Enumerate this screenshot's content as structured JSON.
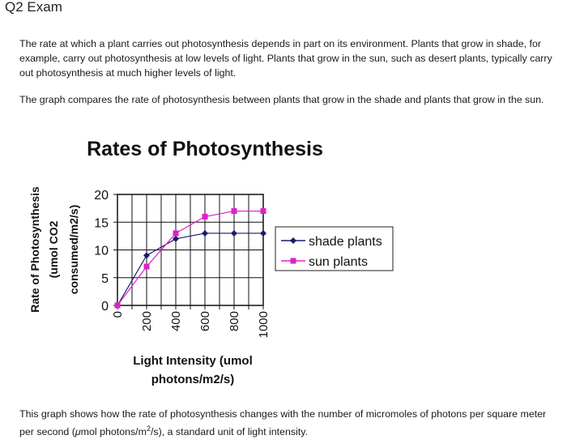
{
  "header": {
    "title": "Q2 Exam"
  },
  "intro": {
    "paragraph1": "The rate at which a plant carries out photosynthesis depends in part on its environment.  Plants that grow in shade, for example, carry out photosynthesis at low levels of light.  Plants that grow in the sun, such as desert plants, typically carry out photosynthesis at much higher levels of light.",
    "paragraph2": "The graph compares the rate of photosynthesis between plants that grow in the shade and plants that grow in the sun."
  },
  "footer": {
    "text_before": "This graph shows how the rate of photosynthesis changes with the number of micromoles of photons per square meter per second (",
    "unit_mu": "μ",
    "unit_main": "mol photons/m",
    "unit_sup": "2",
    "unit_end": "/s)",
    "text_after": ", a standard unit of light intensity."
  },
  "chart_data": {
    "type": "line",
    "title": "Rates of Photosynthesis",
    "xlabel_line1": "Light Intensity (umol",
    "xlabel_line2": "photons/m2/s)",
    "ylabel_line1": "Rate of Photosynthesis",
    "ylabel_line2": "(umol CO2",
    "ylabel_line3": "consumed/m2/s)",
    "x": [
      0,
      100,
      200,
      300,
      400,
      500,
      600,
      700,
      800,
      900,
      1000
    ],
    "xlim": [
      0,
      1000
    ],
    "ylim": [
      0,
      20
    ],
    "x_ticks": [
      "0",
      "200",
      "400",
      "600",
      "800",
      "1000"
    ],
    "y_ticks": [
      "0",
      "5",
      "10",
      "15",
      "20"
    ],
    "grid": true,
    "legend_position": "right",
    "series": [
      {
        "name": "shade plants",
        "color": "#1a1a6e",
        "marker": "diamond",
        "values": [
          0,
          null,
          9,
          null,
          12,
          null,
          13,
          null,
          13,
          null,
          13
        ]
      },
      {
        "name": "sun plants",
        "color": "#e020c8",
        "marker": "square",
        "values": [
          0,
          null,
          7,
          null,
          13,
          null,
          16,
          null,
          17,
          null,
          17
        ]
      }
    ]
  }
}
